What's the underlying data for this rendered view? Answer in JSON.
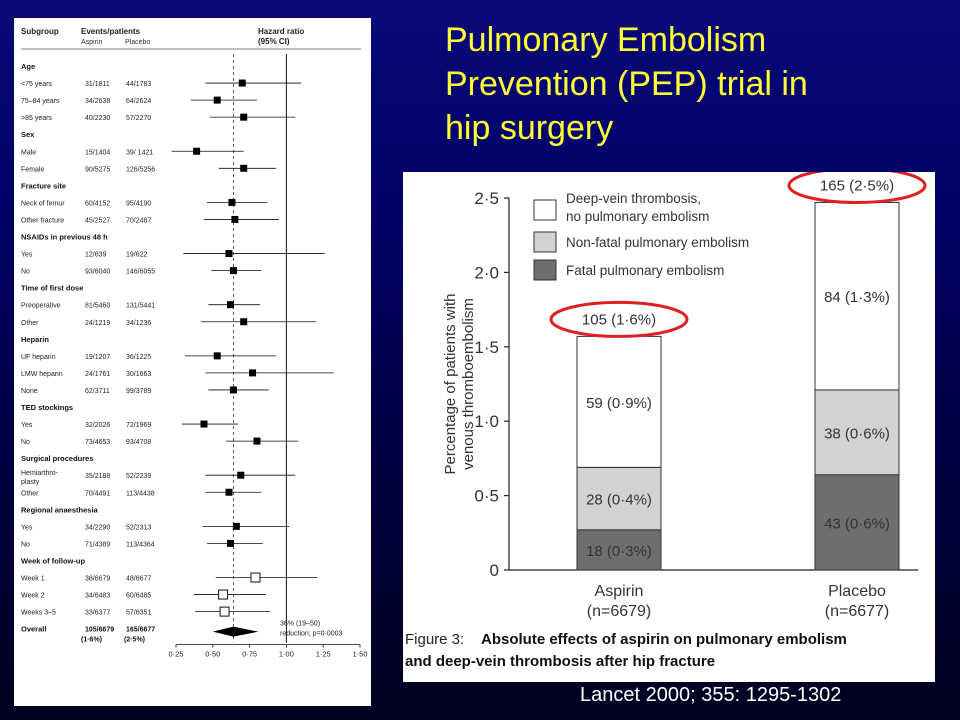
{
  "slide": {
    "title_lines": [
      "Pulmonary Embolism",
      "Prevention (PEP) trial in",
      "hip surgery"
    ],
    "citation": "Lancet 2000; 355: 1295-1302"
  },
  "chart_data": [
    {
      "type": "forest",
      "headers": {
        "subgroup": "Subgroup",
        "events": "Events/patients",
        "aspirin": "Aspirin",
        "placebo": "Placebo",
        "hr": "Hazard ratio",
        "ci": "(95% CI)"
      },
      "rows": [
        {
          "kind": "group",
          "label": "Age"
        },
        {
          "kind": "row",
          "label": "<75 years",
          "aspirin": "31/1811",
          "placebo": "44/1783",
          "hr": 0.7,
          "lo": 0.45,
          "hi": 1.1
        },
        {
          "kind": "row",
          "label": "75–84 years",
          "aspirin": "34/2638",
          "placebo": "64/2624",
          "hr": 0.53,
          "lo": 0.35,
          "hi": 0.8
        },
        {
          "kind": "row",
          "label": ">85 years",
          "aspirin": "40/2230",
          "placebo": "57/2270",
          "hr": 0.71,
          "lo": 0.48,
          "hi": 1.06
        },
        {
          "kind": "group",
          "label": "Sex"
        },
        {
          "kind": "row",
          "label": "Male",
          "aspirin": "15/1404",
          "placebo": "39/ 1421",
          "hr": 0.39,
          "lo": 0.22,
          "hi": 0.71
        },
        {
          "kind": "row",
          "label": "Female",
          "aspirin": "90/5275",
          "placebo": "126/5256",
          "hr": 0.71,
          "lo": 0.54,
          "hi": 0.93
        },
        {
          "kind": "group",
          "label": "Fracture site"
        },
        {
          "kind": "row",
          "label": "Neck of femur",
          "aspirin": "60/4152",
          "placebo": "95/4190",
          "hr": 0.63,
          "lo": 0.46,
          "hi": 0.87
        },
        {
          "kind": "row",
          "label": "Other fracture",
          "aspirin": "45/2527",
          "placebo": "70/2487",
          "hr": 0.65,
          "lo": 0.44,
          "hi": 0.95
        },
        {
          "kind": "group",
          "label": "NSAIDs in previous 48 h"
        },
        {
          "kind": "row",
          "label": "Yes",
          "aspirin": "12/639",
          "placebo": "19/622",
          "hr": 0.61,
          "lo": 0.3,
          "hi": 1.26
        },
        {
          "kind": "row",
          "label": "No",
          "aspirin": "93/6040",
          "placebo": "146/6055",
          "hr": 0.64,
          "lo": 0.49,
          "hi": 0.83
        },
        {
          "kind": "group",
          "label": "Time of first dose"
        },
        {
          "kind": "row",
          "label": "Preoperative",
          "aspirin": "81/5460",
          "placebo": "131/5441",
          "hr": 0.62,
          "lo": 0.47,
          "hi": 0.82
        },
        {
          "kind": "row",
          "label": "Other",
          "aspirin": "24/1219",
          "placebo": "34/1236",
          "hr": 0.71,
          "lo": 0.42,
          "hi": 1.2
        },
        {
          "kind": "group",
          "label": "Heparin"
        },
        {
          "kind": "row",
          "label": "UF heparin",
          "aspirin": "19/1207",
          "placebo": "36/1225",
          "hr": 0.53,
          "lo": 0.31,
          "hi": 0.93
        },
        {
          "kind": "row",
          "label": "LMW heparin",
          "aspirin": "24/1761",
          "placebo": "30/1663",
          "hr": 0.77,
          "lo": 0.45,
          "hi": 1.32
        },
        {
          "kind": "row",
          "label": "None",
          "aspirin": "62/3711",
          "placebo": "99/3789",
          "hr": 0.64,
          "lo": 0.47,
          "hi": 0.88
        },
        {
          "kind": "group",
          "label": "TED stockings"
        },
        {
          "kind": "row",
          "label": "Yes",
          "aspirin": "32/2026",
          "placebo": "72/1969",
          "hr": 0.44,
          "lo": 0.29,
          "hi": 0.67
        },
        {
          "kind": "row",
          "label": "No",
          "aspirin": "73/4653",
          "placebo": "93/4708",
          "hr": 0.8,
          "lo": 0.59,
          "hi": 1.08
        },
        {
          "kind": "group",
          "label": "Surgical procedures"
        },
        {
          "kind": "row",
          "label": "Hemiarthro-",
          "label2": "plasty",
          "aspirin": "35/2188",
          "placebo": "52/2239",
          "hr": 0.69,
          "lo": 0.45,
          "hi": 1.06
        },
        {
          "kind": "row",
          "label": "Other",
          "aspirin": "70/4491",
          "placebo": "113/4438",
          "hr": 0.61,
          "lo": 0.45,
          "hi": 0.83
        },
        {
          "kind": "group",
          "label": "Regional anaesthesia"
        },
        {
          "kind": "row",
          "label": "Yes",
          "aspirin": "34/2290",
          "placebo": "52/2313",
          "hr": 0.66,
          "lo": 0.43,
          "hi": 1.02
        },
        {
          "kind": "row",
          "label": "No",
          "aspirin": "71/4389",
          "placebo": "113/4364",
          "hr": 0.62,
          "lo": 0.46,
          "hi": 0.84
        },
        {
          "kind": "group",
          "label": "Week of follow-up"
        },
        {
          "kind": "row",
          "open": true,
          "label": "Week 1",
          "aspirin": "38/6679",
          "placebo": "48/6677",
          "hr": 0.79,
          "lo": 0.52,
          "hi": 1.21
        },
        {
          "kind": "row",
          "open": true,
          "label": "Week 2",
          "aspirin": "34/6483",
          "placebo": "60/6485",
          "hr": 0.57,
          "lo": 0.37,
          "hi": 0.86
        },
        {
          "kind": "row",
          "open": true,
          "label": "Weeks 3–5",
          "aspirin": "33/6377",
          "placebo": "57/6351",
          "hr": 0.58,
          "lo": 0.38,
          "hi": 0.89
        },
        {
          "kind": "overall",
          "label": "Overall",
          "aspirin": "105/6679",
          "placebo": "165/6677",
          "aspirin_pct": "(1·6%)",
          "placebo_pct": "(2·5%)",
          "hr": 0.64,
          "lo": 0.5,
          "hi": 0.81
        }
      ],
      "overall_note": [
        "36% (19–50)",
        "reduction; p=0·0003"
      ],
      "x_range": [
        0.25,
        1.5
      ],
      "ticks": [
        "0·25",
        "0·50",
        "0·75",
        "1·00",
        "1·25",
        "1·50"
      ],
      "tick_values": [
        0.25,
        0.5,
        0.75,
        1.0,
        1.25,
        1.5
      ],
      "reference_line": 1.0,
      "overall_line": 0.64
    },
    {
      "type": "bar",
      "stacked": true,
      "ylabel_lines": [
        "Percentage of patients with",
        "venous thromboembolism"
      ],
      "ylim": [
        0,
        2.5
      ],
      "yticks": [
        "0",
        "0·5",
        "1·0",
        "1·5",
        "2·0",
        "2·5"
      ],
      "ytick_values": [
        0,
        0.5,
        1.0,
        1.5,
        2.0,
        2.5
      ],
      "categories": [
        {
          "name": "Aspirin",
          "n": "(n=6679)",
          "total": "105 (1·6%)"
        },
        {
          "name": "Placebo",
          "n": "(n=6677)",
          "total": "165 (2·5%)"
        }
      ],
      "series": [
        {
          "name": "Fatal pulmonary embolism",
          "color": "#6e6e6e",
          "values": [
            0.27,
            0.64
          ],
          "labels": [
            "18 (0·3%)",
            "43 (0·6%)"
          ]
        },
        {
          "name": "Non-fatal pulmonary embolism",
          "color": "#d2d2d2",
          "values": [
            0.42,
            0.57
          ],
          "labels": [
            "28 (0·4%)",
            "38 (0·6%)"
          ]
        },
        {
          "name": "Deep-vein thrombosis, no pulmonary embolism",
          "legend_lines": [
            "Deep-vein thrombosis,",
            "no pulmonary embolism"
          ],
          "color": "#ffffff",
          "values": [
            0.88,
            1.26
          ],
          "labels": [
            "59 (0·9%)",
            "84 (1·3%)"
          ]
        }
      ],
      "caption": {
        "prefix": "Figure 3:",
        "line1": "Absolute effects of aspirin on pulmonary embolism",
        "line2": "and deep-vein thrombosis after hip fracture"
      },
      "highlight_color": "#e02020"
    }
  ]
}
